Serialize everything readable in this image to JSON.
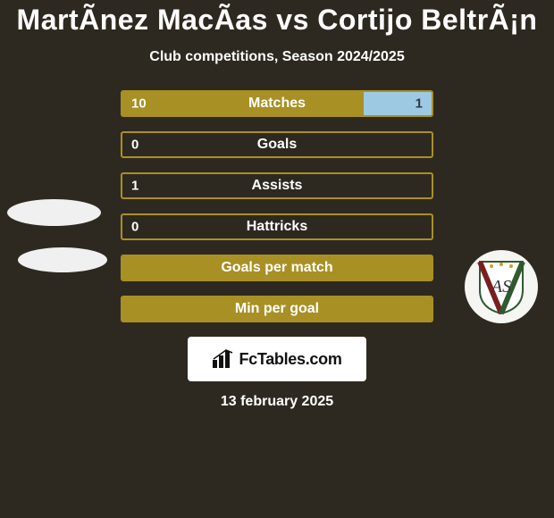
{
  "title": "MartÃnez MacÃas vs Cortijo BeltrÃ¡n",
  "subtitle": "Club competitions, Season 2024/2025",
  "date": "13 february 2025",
  "branding": {
    "text": "FcTables.com"
  },
  "colors": {
    "bg": "#2e2920",
    "primary": "#a99025",
    "primary_light": "#b6a03a",
    "secondary": "#9ec9e2",
    "bar_text": "#ffffff",
    "border_radius": 3
  },
  "bars": [
    {
      "label": "Matches",
      "left_val": "10",
      "right_val": "1",
      "left_pct": 78,
      "right_pct": 22,
      "show_vals": true
    },
    {
      "label": "Goals",
      "left_val": "0",
      "right_val": "",
      "left_pct": 0,
      "right_pct": 0,
      "show_vals": "left"
    },
    {
      "label": "Assists",
      "left_val": "1",
      "right_val": "",
      "left_pct": 0,
      "right_pct": 0,
      "show_vals": "left"
    },
    {
      "label": "Hattricks",
      "left_val": "0",
      "right_val": "",
      "left_pct": 0,
      "right_pct": 0,
      "show_vals": "left"
    },
    {
      "label": "Goals per match",
      "left_val": "",
      "right_val": "",
      "left_pct": 100,
      "right_pct": 0,
      "show_vals": false
    },
    {
      "label": "Min per goal",
      "left_val": "",
      "right_val": "",
      "left_pct": 100,
      "right_pct": 0,
      "show_vals": false
    }
  ],
  "avatars": {
    "left_ellipse_1": true,
    "left_ellipse_2": true,
    "right_circle": true
  },
  "typography": {
    "title_fontsize": 32,
    "subtitle_fontsize": 16,
    "bar_label_fontsize": 16,
    "bar_val_fontsize": 15,
    "date_fontsize": 16
  }
}
